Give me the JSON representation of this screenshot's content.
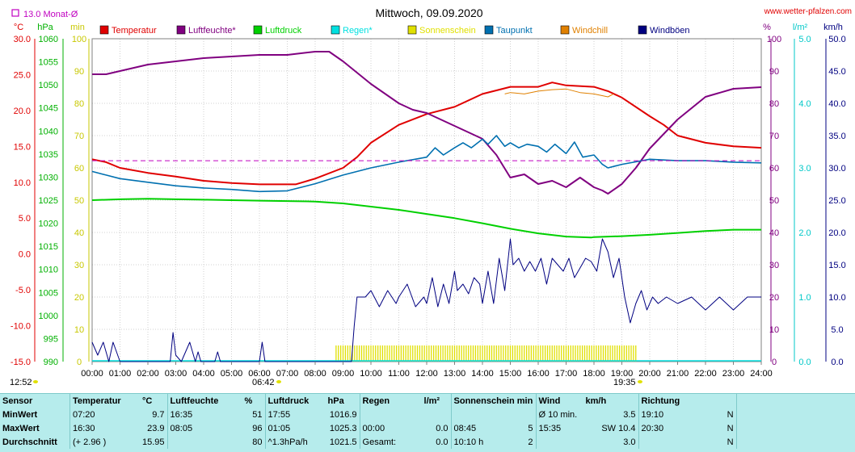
{
  "header": {
    "title": "Mittwoch, 09.09.2020",
    "site": "www.wetter-pfalzen.com",
    "monat": "13.0 Monat-Ø"
  },
  "axis_units": {
    "temp": "°C",
    "press": "hPa",
    "min": "min",
    "pct": "%",
    "rain": "l/m²",
    "wind": "km/h"
  },
  "legend": [
    {
      "label": "Temperatur",
      "color": "#e00000"
    },
    {
      "label": "Luftfeuchte*",
      "color": "#800080"
    },
    {
      "label": "Luftdruck",
      "color": "#00d000"
    },
    {
      "label": "Regen*",
      "color": "#00e0e0"
    },
    {
      "label": "Sonnenschein",
      "color": "#e0e000"
    },
    {
      "label": "Taupunkt",
      "color": "#0070b0"
    },
    {
      "label": "Windchill",
      "color": "#e08000"
    },
    {
      "label": "Windböen",
      "color": "#000080"
    }
  ],
  "sun_marks": {
    "sunrise": "06:42",
    "sunset": "19:35",
    "left_time": "12:52"
  },
  "chart_data": {
    "type": "line",
    "title": "Mittwoch, 09.09.2020",
    "x_ticks": [
      "00:00",
      "01:00",
      "02:00",
      "03:00",
      "04:00",
      "05:00",
      "06:00",
      "07:00",
      "08:00",
      "09:00",
      "10:00",
      "11:00",
      "12:00",
      "13:00",
      "14:00",
      "15:00",
      "16:00",
      "17:00",
      "18:00",
      "19:00",
      "20:00",
      "21:00",
      "22:00",
      "23:00",
      "24:00"
    ],
    "x_range_hours": [
      0,
      24
    ],
    "grid": true,
    "axes": {
      "temp_c": {
        "range": [
          -15,
          30
        ],
        "ticks": [
          "30.0",
          "25.0",
          "20.0",
          "15.0",
          "10.0",
          "5.0",
          "0.0",
          "-5.0",
          "-10.0",
          "-15.0"
        ]
      },
      "pressure_hpa": {
        "range": [
          990,
          1060
        ],
        "ticks": [
          "1060",
          "1055",
          "1050",
          "1045",
          "1040",
          "1035",
          "1030",
          "1025",
          "1020",
          "1015",
          "1010",
          "1005",
          "1000",
          "995",
          "990"
        ]
      },
      "sun_min": {
        "range": [
          0,
          100
        ],
        "ticks": [
          "100",
          "90",
          "80",
          "70",
          "60",
          "50",
          "40",
          "30",
          "20",
          "10",
          "0"
        ]
      },
      "humidity_pct": {
        "range": [
          0,
          100
        ],
        "ticks": [
          "100",
          "90",
          "80",
          "70",
          "60",
          "50",
          "40",
          "30",
          "20",
          "10",
          "0"
        ]
      },
      "rain_lm2": {
        "range": [
          0,
          5
        ],
        "ticks": [
          "5.0",
          "4.0",
          "3.0",
          "2.0",
          "1.0",
          "0.0"
        ]
      },
      "wind_kmh": {
        "range": [
          0,
          50
        ],
        "ticks": [
          "50.0",
          "45.0",
          "40.0",
          "35.0",
          "30.0",
          "25.0",
          "20.0",
          "15.0",
          "10.0",
          "5.0",
          "0.0"
        ]
      }
    },
    "month_avg_temp": 13.0,
    "series": [
      {
        "name": "Temperatur",
        "axis": "temp_c",
        "color": "#e00000",
        "x": [
          0,
          0.5,
          1,
          2,
          3,
          4,
          5,
          6,
          7,
          7.3,
          8,
          9,
          9.5,
          10,
          11,
          12,
          13,
          14,
          14.5,
          15,
          16,
          16.5,
          17,
          18,
          18.5,
          19,
          20,
          20.5,
          21,
          22,
          23,
          24
        ],
        "y": [
          13.2,
          12.8,
          12.0,
          11.3,
          10.8,
          10.2,
          9.9,
          9.7,
          9.7,
          9.7,
          10.5,
          12.0,
          13.5,
          15.5,
          18.0,
          19.5,
          20.5,
          22.3,
          22.8,
          23.3,
          23.3,
          23.9,
          23.5,
          23.3,
          22.7,
          21.8,
          19.2,
          18.0,
          16.5,
          15.5,
          15.0,
          14.8
        ]
      },
      {
        "name": "Windchill",
        "axis": "temp_c",
        "color": "#e08000",
        "x": [
          14.8,
          15,
          15.5,
          16,
          16.5,
          17,
          17.5,
          18,
          18.5,
          18.7
        ],
        "y": [
          22.3,
          22.5,
          22.3,
          22.7,
          22.9,
          23.0,
          22.5,
          22.3,
          21.9,
          22.3
        ]
      },
      {
        "name": "Luftfeuchte*",
        "axis": "humidity_pct",
        "color": "#800080",
        "x": [
          0,
          0.5,
          1,
          2,
          3,
          4,
          5,
          6,
          7,
          8,
          8.5,
          9,
          10,
          11,
          11.5,
          12,
          13,
          13.5,
          14,
          14.5,
          15,
          15.5,
          16,
          16.5,
          17,
          17.5,
          18,
          18.3,
          18.5,
          19,
          19.5,
          20,
          21,
          22,
          23,
          24
        ],
        "y": [
          89,
          89,
          90,
          92,
          93,
          94,
          94.5,
          95,
          95,
          96,
          96,
          93,
          86,
          80,
          78,
          77,
          73,
          71,
          69,
          64,
          57,
          58,
          55,
          56,
          54,
          57,
          54,
          53,
          52,
          55,
          60,
          66,
          75,
          82,
          84.5,
          85
        ]
      },
      {
        "name": "Luftdruck",
        "axis": "pressure_hpa",
        "color": "#00d000",
        "x": [
          0,
          1,
          2,
          3,
          4,
          5,
          6,
          7,
          8,
          9,
          10,
          11,
          12,
          13,
          14,
          15,
          16,
          17,
          17.9,
          18,
          19,
          20,
          21,
          22,
          23,
          24
        ],
        "y": [
          1025.0,
          1025.2,
          1025.3,
          1025.2,
          1025.1,
          1025.0,
          1024.9,
          1024.8,
          1024.7,
          1024.3,
          1023.6,
          1022.9,
          1022.0,
          1021.1,
          1020.0,
          1018.8,
          1017.8,
          1017.1,
          1016.9,
          1017.0,
          1017.2,
          1017.5,
          1017.9,
          1018.3,
          1018.6,
          1018.6
        ]
      },
      {
        "name": "Taupunkt",
        "axis": "temp_c",
        "color": "#0070b0",
        "x": [
          0,
          0.5,
          1,
          2,
          3,
          4,
          5,
          6,
          7,
          8,
          9,
          10,
          11,
          12,
          12.3,
          12.6,
          13,
          13.3,
          13.6,
          14,
          14.2,
          14.5,
          14.8,
          15,
          15.3,
          15.6,
          16,
          16.3,
          16.6,
          17,
          17.3,
          17.6,
          18,
          18.3,
          18.5,
          19,
          20,
          21,
          22,
          23,
          24
        ],
        "y": [
          11.5,
          11.0,
          10.5,
          10.0,
          9.5,
          9.2,
          9.0,
          8.7,
          8.8,
          9.8,
          11.0,
          12.0,
          12.8,
          13.5,
          14.8,
          13.8,
          14.8,
          15.5,
          14.8,
          16.0,
          15.3,
          16.5,
          15.0,
          15.5,
          14.8,
          15.3,
          15.0,
          14.2,
          15.3,
          14.0,
          15.6,
          13.5,
          13.8,
          12.5,
          12.0,
          12.5,
          13.2,
          13.0,
          13.0,
          12.8,
          12.7
        ]
      },
      {
        "name": "Windböen",
        "axis": "wind_kmh",
        "color": "#000080",
        "x": [
          0,
          0.2,
          0.4,
          0.6,
          0.75,
          1,
          2.8,
          2.9,
          3.0,
          3.2,
          3.5,
          3.7,
          3.8,
          3.9,
          4.4,
          4.5,
          4.6,
          6.0,
          6.1,
          6.2,
          6.4,
          9.3,
          9.4,
          9.5,
          9.6,
          9.8,
          10,
          10.3,
          10.6,
          10.9,
          11,
          11.3,
          11.6,
          11.9,
          12,
          12.2,
          12.4,
          12.6,
          12.8,
          13,
          13.1,
          13.3,
          13.5,
          13.7,
          13.9,
          14,
          14.2,
          14.4,
          14.6,
          14.8,
          15,
          15.1,
          15.3,
          15.5,
          15.7,
          15.9,
          16.1,
          16.3,
          16.5,
          16.7,
          16.9,
          17.1,
          17.3,
          17.5,
          17.7,
          17.9,
          18.1,
          18.3,
          18.5,
          18.7,
          18.9,
          19.1,
          19.3,
          19.5,
          19.7,
          19.9,
          20.1,
          20.3,
          20.6,
          21,
          21.5,
          22,
          22.5,
          23,
          23.5,
          24
        ],
        "y": [
          3,
          1,
          3,
          0,
          3,
          0,
          0,
          4.5,
          1,
          0,
          3,
          0,
          1.5,
          0,
          0,
          1.5,
          0,
          0,
          3,
          0,
          0,
          0,
          5.5,
          10,
          10,
          10,
          11,
          8.5,
          11,
          9,
          10,
          12,
          8.5,
          10,
          9,
          13,
          8.5,
          12,
          9,
          14,
          11,
          12,
          10.5,
          13,
          12,
          9,
          14,
          9,
          16,
          11,
          19,
          15,
          16,
          14,
          15.5,
          14,
          16,
          12,
          16,
          15,
          14,
          16,
          13,
          14.5,
          16,
          15.5,
          14,
          19,
          17,
          13,
          16,
          10,
          6,
          9,
          11,
          8,
          10,
          9,
          10,
          9,
          10,
          8,
          10,
          8,
          10,
          10
        ]
      }
    ],
    "sunshine_minutes": {
      "axis": "sun_min",
      "color": "#e0e000",
      "start": "08:45",
      "end": "19:35",
      "per_10min": 5
    }
  },
  "table": {
    "header": {
      "sensor": "Sensor",
      "temp": "Temperatur",
      "temp_u": "°C",
      "hum": "Luftfeuchte",
      "hum_u": "%",
      "press": "Luftdruck",
      "press_u": "hPa",
      "rain": "Regen",
      "rain_u": "l/m²",
      "sun": "Sonnenschein min",
      "wind": "Wind",
      "wind_u": "km/h",
      "dir": "Richtung"
    },
    "rows": [
      {
        "label": "MinWert",
        "t_time": "07:20",
        "t_val": "9.7",
        "h_time": "16:35",
        "h_val": "51",
        "p_time": "17:55",
        "p_val": "1016.9",
        "r_time": "",
        "r_val": "",
        "s_time": "",
        "s_val": "",
        "w_time": "Ø 10 min.",
        "w_val": "3.5",
        "d_time": "19:10",
        "d_val": "N"
      },
      {
        "label": "MaxWert",
        "t_time": "16:30",
        "t_val": "23.9",
        "h_time": "08:05",
        "h_val": "96",
        "p_time": "01:05",
        "p_val": "1025.3",
        "r_time": "00:00",
        "r_val": "0.0",
        "s_time": "08:45",
        "s_val": "5",
        "w_time": "15:35",
        "w_val": "SW 10.4",
        "d_time": "20:30",
        "d_val": "N"
      },
      {
        "label": "Durchschnitt",
        "t_time": "(+ 2.96 )",
        "t_val": "15.95",
        "h_time": "",
        "h_val": "80",
        "p_time": "^1.3hPa/h",
        "p_val": "1021.5",
        "r_time": "Gesamt:",
        "r_val": "0.0",
        "s_time": "10:10 h",
        "s_val": "2",
        "w_time": "",
        "w_val": "3.0",
        "d_time": "",
        "d_val": "N"
      }
    ]
  }
}
